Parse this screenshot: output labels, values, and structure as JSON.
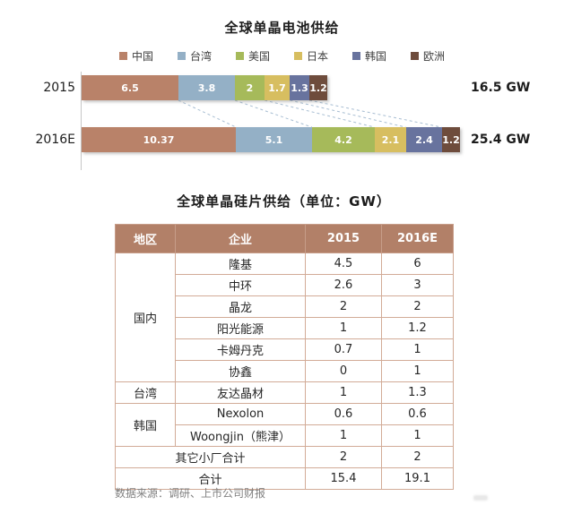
{
  "chart_data": {
    "type": "bar",
    "orientation": "horizontal",
    "stacked": true,
    "title": "全球单晶电池供给",
    "categories": [
      "2015",
      "2016E"
    ],
    "series": [
      {
        "name": "中国",
        "color": "#b98269",
        "values": [
          6.5,
          10.37
        ]
      },
      {
        "name": "台湾",
        "color": "#94b0c6",
        "values": [
          3.8,
          5.1
        ]
      },
      {
        "name": "美国",
        "color": "#a6ba5a",
        "values": [
          2,
          4.2
        ]
      },
      {
        "name": "日本",
        "color": "#d7be60",
        "values": [
          1.7,
          2.1
        ]
      },
      {
        "name": "韩国",
        "color": "#68739e",
        "values": [
          1.3,
          2.4
        ]
      },
      {
        "name": "欧洲",
        "color": "#6e4c3c",
        "values": [
          1.2,
          1.2
        ]
      }
    ],
    "totals": [
      "16.5 GW",
      "25.4 GW"
    ],
    "legend_position": "top",
    "xlim": [
      0,
      25.4
    ],
    "connector_color": "#a7bdd2"
  },
  "table": {
    "title": "全球单晶硅片供给（单位：GW）",
    "columns": [
      "地区",
      "企业",
      "2015",
      "2016E"
    ],
    "rows": [
      {
        "region": "国内",
        "region_rowspan": 6,
        "company": "隆基",
        "v2015": "4.5",
        "v2016e": "6"
      },
      {
        "company": "中环",
        "v2015": "2.6",
        "v2016e": "3"
      },
      {
        "company": "晶龙",
        "v2015": "2",
        "v2016e": "2"
      },
      {
        "company": "阳光能源",
        "v2015": "1",
        "v2016e": "1.2"
      },
      {
        "company": "卡姆丹克",
        "v2015": "0.7",
        "v2016e": "1"
      },
      {
        "company": "协鑫",
        "v2015": "0",
        "v2016e": "1"
      },
      {
        "region": "台湾",
        "region_rowspan": 1,
        "company": "友达晶材",
        "v2015": "1",
        "v2016e": "1.3"
      },
      {
        "region": "韩国",
        "region_rowspan": 2,
        "company": "Nexolon",
        "v2015": "0.6",
        "v2016e": "0.6"
      },
      {
        "company": "Woongjin（熊津）",
        "v2015": "1",
        "v2016e": "1"
      },
      {
        "label": "其它小厂合计",
        "v2015": "2",
        "v2016e": "2"
      },
      {
        "label": "合计",
        "v2015": "15.4",
        "v2016e": "19.1"
      }
    ]
  },
  "footer": {
    "source": "数据来源：调研、上市公司财报"
  }
}
